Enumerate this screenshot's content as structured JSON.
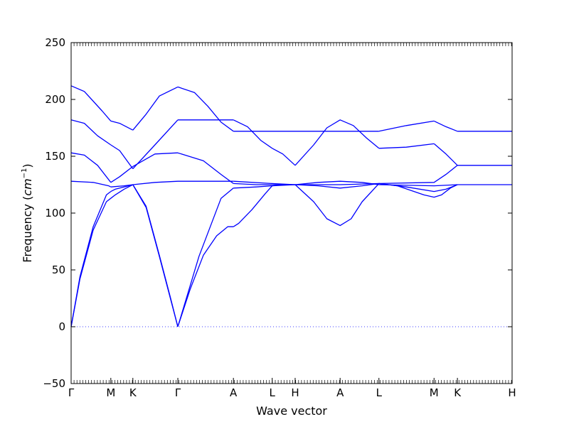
{
  "chart_data": {
    "type": "line",
    "title": "",
    "xlabel": "Wave vector",
    "ylabel_text": "Frequency (",
    "ylabel_math": "cm",
    "ylabel_sup": "−1",
    "ylabel_close": ")",
    "ylim": [
      -50,
      250
    ],
    "yticks": [
      -50,
      0,
      50,
      100,
      150,
      200,
      250
    ],
    "ytick_labels": [
      "−50",
      "0",
      "50",
      "100",
      "150",
      "200",
      "250"
    ],
    "xlim": [
      0,
      1
    ],
    "x_ticks": [
      {
        "x": 0.0,
        "label": "Γ"
      },
      {
        "x": 0.09,
        "label": "M"
      },
      {
        "x": 0.14,
        "label": "K"
      },
      {
        "x": 0.242,
        "label": "Γ"
      },
      {
        "x": 0.368,
        "label": "A"
      },
      {
        "x": 0.456,
        "label": "L"
      },
      {
        "x": 0.508,
        "label": "H"
      },
      {
        "x": 0.61,
        "label": "A"
      },
      {
        "x": 0.698,
        "label": "L"
      },
      {
        "x": 0.823,
        "label": "M"
      },
      {
        "x": 0.876,
        "label": "K"
      },
      {
        "x": 1.0,
        "label": "H"
      }
    ],
    "zero_line": 0,
    "line_color": "#0000ff",
    "series": [
      {
        "x": [
          0,
          0.02,
          0.05,
          0.08,
          0.09
        ],
        "y": [
          0,
          42,
          85,
          110,
          113
        ]
      },
      {
        "x": [
          0.09,
          0.1,
          0.12,
          0.14
        ],
        "y": [
          113,
          116,
          121,
          125
        ]
      },
      {
        "x": [
          0.14,
          0.17,
          0.2,
          0.225,
          0.242
        ],
        "y": [
          125,
          105,
          62,
          25,
          0
        ]
      },
      {
        "x": [
          0.242,
          0.27,
          0.3,
          0.33,
          0.355,
          0.368
        ],
        "y": [
          0,
          33,
          63,
          80,
          88,
          88
        ]
      },
      {
        "x": [
          0.368,
          0.38,
          0.41,
          0.44,
          0.456
        ],
        "y": [
          88,
          91,
          103,
          117,
          124
        ]
      },
      {
        "x": [
          0.456,
          0.48,
          0.508
        ],
        "y": [
          124,
          125,
          125
        ]
      },
      {
        "x": [
          0.508,
          0.55,
          0.58,
          0.61,
          0.635,
          0.66,
          0.698
        ],
        "y": [
          125,
          110,
          95,
          89,
          95,
          110,
          126
        ]
      },
      {
        "x": [
          0.698,
          0.74,
          0.8,
          0.823,
          0.84,
          0.86,
          0.876
        ],
        "y": [
          126,
          124,
          116,
          114,
          116,
          122,
          125
        ]
      },
      {
        "x": [
          0.876,
          1.0
        ],
        "y": [
          125,
          125
        ]
      },
      {
        "x": [
          0,
          0.02,
          0.05,
          0.08,
          0.09
        ],
        "y": [
          0,
          44,
          88,
          116,
          119
        ]
      },
      {
        "x": [
          0.09,
          0.1,
          0.12,
          0.14
        ],
        "y": [
          119,
          121,
          123,
          125
        ]
      },
      {
        "x": [
          0.14,
          0.17,
          0.2,
          0.225,
          0.242
        ],
        "y": [
          125,
          106,
          63,
          26,
          0
        ]
      },
      {
        "x": [
          0.242,
          0.29,
          0.34,
          0.368
        ],
        "y": [
          0,
          62,
          113,
          122
        ]
      },
      {
        "x": [
          0.368,
          0.42,
          0.456,
          0.508
        ],
        "y": [
          122,
          123,
          124,
          125
        ]
      },
      {
        "x": [
          0.508,
          0.56,
          0.61,
          0.66,
          0.698
        ],
        "y": [
          125,
          124,
          122,
          124,
          126
        ]
      },
      {
        "x": [
          0.698,
          0.76,
          0.823,
          0.85,
          0.876
        ],
        "y": [
          126,
          123,
          119,
          121,
          125
        ]
      },
      {
        "x": [
          0,
          0.05,
          0.085,
          0.09
        ],
        "y": [
          128,
          127,
          124,
          123
        ]
      },
      {
        "x": [
          0.09,
          0.12,
          0.14
        ],
        "y": [
          123,
          124,
          125
        ]
      },
      {
        "x": [
          0.14,
          0.19,
          0.242
        ],
        "y": [
          125,
          127,
          128
        ]
      },
      {
        "x": [
          0.242,
          0.368
        ],
        "y": [
          128,
          128
        ]
      },
      {
        "x": [
          0.368,
          0.456,
          0.508
        ],
        "y": [
          128,
          126,
          125
        ]
      },
      {
        "x": [
          0.508,
          0.56,
          0.61,
          0.66,
          0.698
        ],
        "y": [
          125,
          127,
          128,
          127,
          125
        ]
      },
      {
        "x": [
          0.698,
          0.823,
          0.876
        ],
        "y": [
          125,
          124,
          125
        ]
      },
      {
        "x": [
          0.368,
          0.42,
          0.456,
          0.508,
          0.61,
          0.698
        ],
        "y": [
          126,
          125,
          125,
          125,
          125,
          126
        ]
      },
      {
        "x": [
          0.698,
          0.823,
          0.85,
          0.876
        ],
        "y": [
          126,
          127,
          134,
          142
        ]
      },
      {
        "x": [
          0.876,
          1.0
        ],
        "y": [
          142,
          142
        ]
      },
      {
        "x": [
          0,
          0.03,
          0.06,
          0.09
        ],
        "y": [
          153,
          151,
          142,
          127
        ]
      },
      {
        "x": [
          0.09,
          0.11,
          0.14
        ],
        "y": [
          127,
          132,
          141
        ]
      },
      {
        "x": [
          0.14,
          0.19,
          0.242
        ],
        "y": [
          141,
          152,
          153
        ]
      },
      {
        "x": [
          0.242,
          0.3,
          0.34,
          0.368
        ],
        "y": [
          153,
          146,
          134,
          126
        ]
      },
      {
        "x": [
          0,
          0.03,
          0.06,
          0.09
        ],
        "y": [
          182,
          179,
          168,
          160
        ]
      },
      {
        "x": [
          0.09,
          0.11,
          0.14
        ],
        "y": [
          160,
          155,
          139
        ]
      },
      {
        "x": [
          0.14,
          0.19,
          0.242
        ],
        "y": [
          139,
          160,
          182
        ]
      },
      {
        "x": [
          0.242,
          0.368
        ],
        "y": [
          182,
          182
        ]
      },
      {
        "x": [
          0.368,
          0.4,
          0.43,
          0.456
        ],
        "y": [
          182,
          176,
          164,
          157
        ]
      },
      {
        "x": [
          0.456,
          0.48,
          0.508
        ],
        "y": [
          157,
          152,
          142
        ]
      },
      {
        "x": [
          0.508,
          0.55,
          0.58,
          0.61,
          0.64,
          0.67,
          0.698
        ],
        "y": [
          142,
          160,
          175,
          182,
          177,
          166,
          157
        ]
      },
      {
        "x": [
          0.698,
          0.76,
          0.823
        ],
        "y": [
          157,
          158,
          161
        ]
      },
      {
        "x": [
          0.823,
          0.85,
          0.876
        ],
        "y": [
          161,
          152,
          142
        ]
      },
      {
        "x": [
          0,
          0.03,
          0.07,
          0.09
        ],
        "y": [
          212,
          207,
          190,
          181
        ]
      },
      {
        "x": [
          0.09,
          0.11,
          0.14
        ],
        "y": [
          181,
          179,
          173
        ]
      },
      {
        "x": [
          0.14,
          0.17,
          0.2,
          0.242
        ],
        "y": [
          173,
          187,
          203,
          211
        ]
      },
      {
        "x": [
          0.242,
          0.28,
          0.31,
          0.34,
          0.368
        ],
        "y": [
          211,
          206,
          194,
          180,
          172
        ]
      },
      {
        "x": [
          0.368,
          0.61,
          0.698
        ],
        "y": [
          172,
          172,
          172
        ]
      },
      {
        "x": [
          0.698,
          0.76,
          0.823
        ],
        "y": [
          172,
          177,
          181
        ]
      },
      {
        "x": [
          0.823,
          0.85,
          0.876
        ],
        "y": [
          181,
          176,
          172
        ]
      },
      {
        "x": [
          0.876,
          1.0
        ],
        "y": [
          172,
          172
        ]
      }
    ]
  }
}
